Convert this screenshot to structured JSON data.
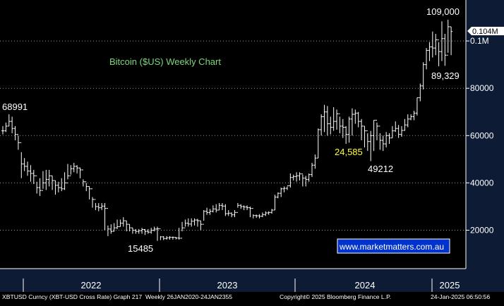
{
  "chart_data": {
    "type": "ohlc",
    "title": "Bitcoin ($US) Weekly Chart",
    "source_label": "www.marketmatters.com.au",
    "last_price_badge": "0.104M",
    "y_axis": {
      "ylim": [
        0,
        113000
      ],
      "ticks": [
        {
          "value": 20000,
          "label": "20000"
        },
        {
          "value": 40000,
          "label": "40000"
        },
        {
          "value": 60000,
          "label": "60000"
        },
        {
          "value": 80000,
          "label": "80000"
        },
        {
          "value": 100000,
          "label": "0.1M"
        }
      ]
    },
    "x_axis": {
      "labels": [
        "2022",
        "2023",
        "2024",
        "2025"
      ]
    },
    "annotations": [
      {
        "label": "109,000",
        "value": 109000,
        "color": "#ffffff"
      },
      {
        "label": "89,329",
        "value": 89329,
        "color": "#ffffff"
      },
      {
        "label": "68991",
        "value": 68991,
        "color": "#ffffff"
      },
      {
        "label": "24,585",
        "value": 24585,
        "color": "#ffff33"
      },
      {
        "label": "49212",
        "value": 49212,
        "color": "#ffffff"
      },
      {
        "label": "15485",
        "value": 15485,
        "color": "#ffffff"
      }
    ],
    "grid": true,
    "series_color": "#ffffff",
    "background": "#000000",
    "axis_background": "#0d1b35",
    "title_color": "#7dd87d",
    "weekly_closes": [
      62000,
      64000,
      66000,
      63000,
      60500,
      57000,
      48000,
      47000,
      45000,
      44000,
      43000,
      38000,
      36800,
      40000,
      41500,
      43000,
      41000,
      39000,
      38000,
      37500,
      40000,
      43000,
      46000,
      47000,
      46300,
      45500,
      40500,
      38500,
      37500,
      33000,
      30000,
      29500,
      30200,
      29200,
      20500,
      19500,
      21000,
      21500,
      23000,
      24000,
      22500,
      21000,
      20000,
      19500,
      19800,
      20300,
      19500,
      19200,
      20000,
      20500,
      20600,
      17200,
      16500,
      16800,
      17000,
      17000,
      16700,
      16600,
      21000,
      23000,
      22600,
      23800,
      24300,
      24000,
      22500,
      28000,
      27500,
      28000,
      29000,
      28500,
      30500,
      30200,
      27000,
      27200,
      26500,
      27500,
      30500,
      30000,
      29800,
      29500,
      29200,
      26200,
      26100,
      25900,
      26600,
      27300,
      27500,
      28500,
      34000,
      35600,
      37500,
      37700,
      38800,
      42300,
      42700,
      43000,
      43800,
      42000,
      41500,
      43500,
      47500,
      50500,
      62500,
      68000,
      70000,
      65000,
      63500,
      66000,
      69200,
      64000,
      63500,
      60500,
      67000,
      69000,
      69500,
      66000,
      64000,
      62000,
      57500,
      60000,
      66500,
      64000,
      58000,
      56500,
      60000,
      59000,
      62000,
      63000,
      60500,
      62200,
      64500,
      67000,
      68000,
      69500,
      76000,
      81000,
      90000,
      96000,
      97500,
      97000,
      100500,
      95500,
      101000,
      94000,
      106000,
      104000
    ],
    "bar_ranges": [
      [
        60500,
        64000
      ],
      [
        61500,
        65500
      ],
      [
        64000,
        69000
      ],
      [
        61000,
        68000
      ],
      [
        58000,
        64000
      ],
      [
        54000,
        60000
      ],
      [
        42000,
        53000
      ],
      [
        45000,
        50500
      ],
      [
        43000,
        49000
      ],
      [
        40500,
        47500
      ],
      [
        39500,
        45500
      ],
      [
        35500,
        40500
      ],
      [
        34500,
        42000
      ],
      [
        37500,
        45000
      ],
      [
        37000,
        45500
      ],
      [
        38500,
        45500
      ],
      [
        37000,
        43000
      ],
      [
        35000,
        41000
      ],
      [
        36000,
        40500
      ],
      [
        36500,
        42000
      ],
      [
        37000,
        44500
      ],
      [
        41500,
        48000
      ],
      [
        43500,
        47500
      ],
      [
        44500,
        48500
      ],
      [
        44000,
        47500
      ],
      [
        42000,
        46500
      ],
      [
        38500,
        41500
      ],
      [
        36500,
        40000
      ],
      [
        33000,
        38500
      ],
      [
        29500,
        34000
      ],
      [
        28500,
        31500
      ],
      [
        28000,
        31500
      ],
      [
        28500,
        31500
      ],
      [
        20000,
        31500
      ],
      [
        17500,
        22000
      ],
      [
        18500,
        22500
      ],
      [
        19500,
        23000
      ],
      [
        20500,
        24500
      ],
      [
        21500,
        24500
      ],
      [
        21500,
        25500
      ],
      [
        19500,
        24000
      ],
      [
        19500,
        22500
      ],
      [
        18500,
        21000
      ],
      [
        18500,
        20500
      ],
      [
        18500,
        20500
      ],
      [
        18500,
        21000
      ],
      [
        18000,
        20500
      ],
      [
        18500,
        20500
      ],
      [
        18500,
        21000
      ],
      [
        19500,
        21500
      ],
      [
        15485,
        21500
      ],
      [
        15800,
        17500
      ],
      [
        15800,
        17500
      ],
      [
        16000,
        17500
      ],
      [
        16000,
        17500
      ],
      [
        16000,
        17300
      ],
      [
        16100,
        17100
      ],
      [
        16000,
        21000
      ],
      [
        19500,
        23500
      ],
      [
        21500,
        24500
      ],
      [
        21500,
        25000
      ],
      [
        21500,
        25000
      ],
      [
        22000,
        25000
      ],
      [
        21500,
        24800
      ],
      [
        20000,
        24000
      ],
      [
        24000,
        28500
      ],
      [
        26500,
        29500
      ],
      [
        26500,
        29000
      ],
      [
        27500,
        30500
      ],
      [
        27500,
        31000
      ],
      [
        28500,
        31500
      ],
      [
        28500,
        31500
      ],
      [
        26000,
        31000
      ],
      [
        26000,
        28500
      ],
      [
        25500,
        27500
      ],
      [
        25500,
        28500
      ],
      [
        29500,
        31500
      ],
      [
        29000,
        31000
      ],
      [
        28500,
        30500
      ],
      [
        28500,
        30500
      ],
      [
        25500,
        30000
      ],
      [
        25000,
        26700
      ],
      [
        25200,
        26600
      ],
      [
        25000,
        26800
      ],
      [
        25500,
        27500
      ],
      [
        26000,
        28000
      ],
      [
        26500,
        28000
      ],
      [
        27000,
        29000
      ],
      [
        28500,
        35000
      ],
      [
        33500,
        36000
      ],
      [
        34000,
        38000
      ],
      [
        36000,
        38500
      ],
      [
        37000,
        38500
      ],
      [
        38000,
        44000
      ],
      [
        41000,
        43500
      ],
      [
        40500,
        44500
      ],
      [
        41000,
        44500
      ],
      [
        38500,
        43500
      ],
      [
        38500,
        43000
      ],
      [
        40500,
        44000
      ],
      [
        42500,
        48500
      ],
      [
        46000,
        52000
      ],
      [
        50500,
        63000
      ],
      [
        60000,
        69000
      ],
      [
        61500,
        73000
      ],
      [
        60000,
        72500
      ],
      [
        60500,
        68000
      ],
      [
        62000,
        72000
      ],
      [
        62500,
        71000
      ],
      [
        61000,
        68000
      ],
      [
        59000,
        67000
      ],
      [
        56500,
        64000
      ],
      [
        57000,
        68000
      ],
      [
        60000,
        71500
      ],
      [
        65000,
        71000
      ],
      [
        63500,
        70000
      ],
      [
        58000,
        67000
      ],
      [
        55000,
        64000
      ],
      [
        53500,
        61000
      ],
      [
        49212,
        62000
      ],
      [
        53500,
        66500
      ],
      [
        58000,
        65500
      ],
      [
        54000,
        61000
      ],
      [
        53500,
        60000
      ],
      [
        55000,
        61500
      ],
      [
        56500,
        61000
      ],
      [
        59000,
        64000
      ],
      [
        61500,
        66000
      ],
      [
        59000,
        64500
      ],
      [
        59500,
        64000
      ],
      [
        62000,
        67000
      ],
      [
        63500,
        69000
      ],
      [
        66500,
        69000
      ],
      [
        66500,
        70500
      ],
      [
        68500,
        76000
      ],
      [
        74500,
        82000
      ],
      [
        79500,
        91000
      ],
      [
        88000,
        97000
      ],
      [
        91500,
        99500
      ],
      [
        93000,
        104000
      ],
      [
        94000,
        103000
      ],
      [
        89329,
        99500
      ],
      [
        91500,
        108300
      ],
      [
        89500,
        103000
      ],
      [
        95000,
        109000
      ],
      [
        94000,
        106000
      ]
    ]
  }
}
